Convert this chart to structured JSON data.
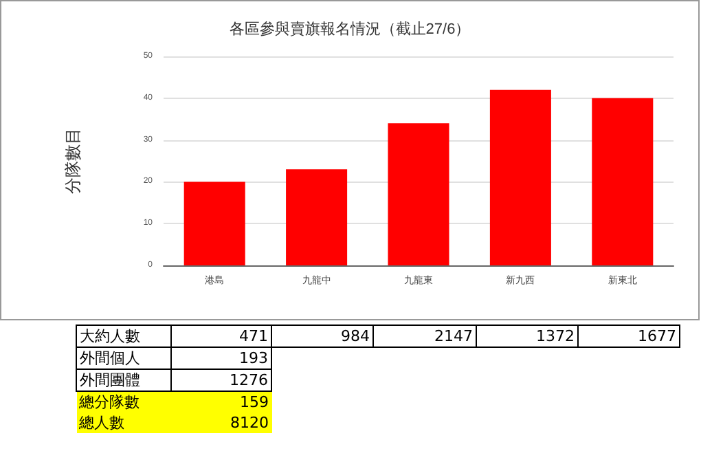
{
  "chart_data": {
    "type": "bar",
    "title": "各區參與賣旗報名情況（截止27/6）",
    "ylabel": "分隊數目",
    "categories": [
      "港島",
      "九龍中",
      "九龍東",
      "新九西",
      "新東北"
    ],
    "values": [
      20,
      23,
      34,
      42,
      40
    ],
    "color": "#ff0000",
    "ylim": [
      0,
      50
    ],
    "yticks": [
      0,
      10,
      20,
      30,
      40,
      50
    ],
    "grid": "y",
    "annotations": [
      "大約人數",
      "471",
      "984",
      "2147",
      "1372",
      "1677",
      "外間個人",
      "193",
      "外間團體",
      "1276",
      "總分隊數",
      "159",
      "總人數",
      "8120"
    ]
  }
}
